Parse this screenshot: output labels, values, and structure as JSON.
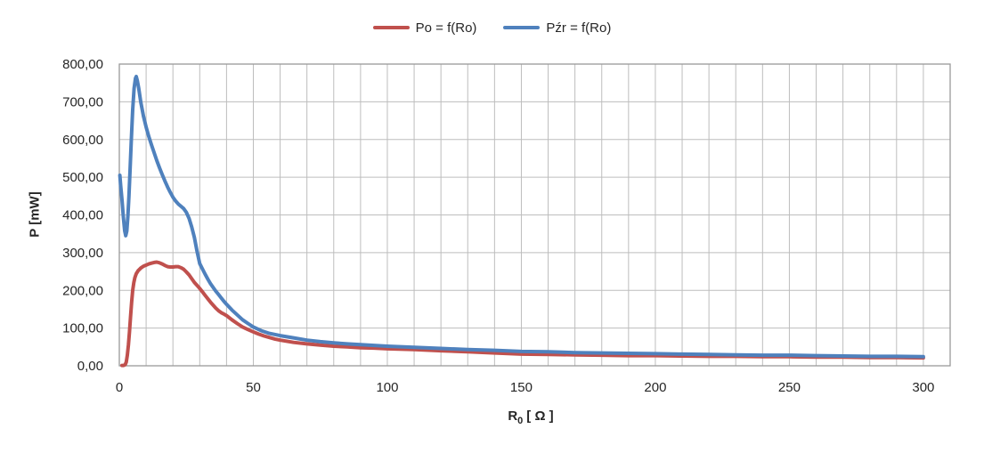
{
  "colors": {
    "background": "#FFFFFF",
    "gridline": "#BDBDBD",
    "plot_border": "#999999",
    "text": "#262626",
    "series_red": "#C0504D",
    "series_blue": "#4F81BD"
  },
  "chart_data": {
    "type": "line",
    "title": "",
    "ylabel": "P [mW]",
    "xlabel": {
      "base": "R",
      "sub": "0",
      "unit": "[ Ω ]"
    },
    "xlim": [
      0,
      310
    ],
    "ylim": [
      0,
      800
    ],
    "grid": {
      "x_minor_interval": 10,
      "y_interval": 100,
      "visible": true
    },
    "x_ticks": [
      {
        "value": 0,
        "label": "0"
      },
      {
        "value": 50,
        "label": "50"
      },
      {
        "value": 100,
        "label": "100"
      },
      {
        "value": 150,
        "label": "150"
      },
      {
        "value": 200,
        "label": "200"
      },
      {
        "value": 250,
        "label": "250"
      },
      {
        "value": 300,
        "label": "300"
      }
    ],
    "y_ticks": [
      {
        "value": 0,
        "label": "0,00"
      },
      {
        "value": 100,
        "label": "100,00"
      },
      {
        "value": 200,
        "label": "200,00"
      },
      {
        "value": 300,
        "label": "300,00"
      },
      {
        "value": 400,
        "label": "400,00"
      },
      {
        "value": 500,
        "label": "500,00"
      },
      {
        "value": 600,
        "label": "600,00"
      },
      {
        "value": 700,
        "label": "700,00"
      },
      {
        "value": 800,
        "label": "800,00"
      }
    ],
    "legend": {
      "position": "top-center",
      "entries": [
        {
          "id": "po",
          "label": "Po = f(Ro)",
          "color": "#C0504D"
        },
        {
          "id": "pzr",
          "label": "Pźr = f(Ro)",
          "color": "#4F81BD"
        }
      ]
    },
    "series": [
      {
        "id": "po",
        "name": "Po = f(Ro)",
        "color": "#C0504D",
        "points": [
          [
            1,
            1
          ],
          [
            1.6,
            1
          ],
          [
            2.2,
            3
          ],
          [
            2.6,
            10
          ],
          [
            3,
            28
          ],
          [
            3.4,
            55
          ],
          [
            3.8,
            90
          ],
          [
            4.2,
            130
          ],
          [
            4.6,
            168
          ],
          [
            5,
            200
          ],
          [
            5.4,
            221
          ],
          [
            5.8,
            234
          ],
          [
            6.3,
            244
          ],
          [
            7,
            252
          ],
          [
            8,
            259
          ],
          [
            9,
            264
          ],
          [
            10,
            267
          ],
          [
            11,
            270
          ],
          [
            12,
            272
          ],
          [
            13,
            274
          ],
          [
            14,
            275
          ],
          [
            15,
            273
          ],
          [
            16,
            270
          ],
          [
            17,
            266
          ],
          [
            18,
            263
          ],
          [
            19,
            262
          ],
          [
            20,
            262
          ],
          [
            21,
            263
          ],
          [
            22,
            263
          ],
          [
            23,
            260
          ],
          [
            24,
            256
          ],
          [
            25,
            249
          ],
          [
            26,
            241
          ],
          [
            27,
            231
          ],
          [
            28,
            221
          ],
          [
            29,
            213
          ],
          [
            30,
            205
          ],
          [
            31,
            196
          ],
          [
            32,
            187
          ],
          [
            33,
            178
          ],
          [
            34,
            169
          ],
          [
            35,
            161
          ],
          [
            36,
            153
          ],
          [
            37,
            146
          ],
          [
            38,
            141
          ],
          [
            39,
            137
          ],
          [
            40,
            133
          ],
          [
            42,
            122
          ],
          [
            44,
            112
          ],
          [
            46,
            103
          ],
          [
            48,
            96
          ],
          [
            50,
            90
          ],
          [
            52,
            84
          ],
          [
            54,
            79
          ],
          [
            56,
            75
          ],
          [
            58,
            71
          ],
          [
            60,
            68
          ],
          [
            65,
            62
          ],
          [
            70,
            58
          ],
          [
            75,
            55
          ],
          [
            80,
            52
          ],
          [
            85,
            50
          ],
          [
            90,
            48
          ],
          [
            95,
            47
          ],
          [
            100,
            45
          ],
          [
            110,
            43
          ],
          [
            120,
            40
          ],
          [
            130,
            37
          ],
          [
            140,
            34
          ],
          [
            150,
            31
          ],
          [
            160,
            30
          ],
          [
            170,
            29
          ],
          [
            180,
            28
          ],
          [
            190,
            27
          ],
          [
            200,
            27
          ],
          [
            210,
            26
          ],
          [
            220,
            25
          ],
          [
            230,
            25
          ],
          [
            240,
            24
          ],
          [
            250,
            24
          ],
          [
            260,
            23
          ],
          [
            270,
            23
          ],
          [
            280,
            22
          ],
          [
            290,
            22
          ],
          [
            300,
            21
          ]
        ]
      },
      {
        "id": "pzr",
        "name": "Pźr = f(Ro)",
        "color": "#4F81BD",
        "points": [
          [
            0.2,
            505
          ],
          [
            0.5,
            478
          ],
          [
            1,
            440
          ],
          [
            1.5,
            395
          ],
          [
            2,
            358
          ],
          [
            2.4,
            345
          ],
          [
            2.8,
            357
          ],
          [
            3.2,
            396
          ],
          [
            3.6,
            450
          ],
          [
            4,
            516
          ],
          [
            4.5,
            601
          ],
          [
            5,
            679
          ],
          [
            5.5,
            736
          ],
          [
            6,
            762
          ],
          [
            6.3,
            767
          ],
          [
            6.7,
            756
          ],
          [
            7.2,
            737
          ],
          [
            8,
            699
          ],
          [
            9,
            662
          ],
          [
            10,
            633
          ],
          [
            11,
            608
          ],
          [
            12,
            586
          ],
          [
            13,
            565
          ],
          [
            14,
            544
          ],
          [
            15,
            525
          ],
          [
            16,
            507
          ],
          [
            17,
            490
          ],
          [
            18,
            474
          ],
          [
            19,
            460
          ],
          [
            20,
            447
          ],
          [
            21,
            437
          ],
          [
            22,
            429
          ],
          [
            23,
            423
          ],
          [
            24,
            417
          ],
          [
            25,
            407
          ],
          [
            26,
            391
          ],
          [
            27,
            368
          ],
          [
            28,
            340
          ],
          [
            29,
            303
          ],
          [
            30,
            271
          ],
          [
            31,
            257
          ],
          [
            32,
            243
          ],
          [
            33,
            230
          ],
          [
            34,
            218
          ],
          [
            35,
            208
          ],
          [
            36,
            198
          ],
          [
            37,
            189
          ],
          [
            38,
            180
          ],
          [
            39,
            171
          ],
          [
            40,
            163
          ],
          [
            42,
            148
          ],
          [
            44,
            135
          ],
          [
            46,
            122
          ],
          [
            48,
            112
          ],
          [
            50,
            103
          ],
          [
            53,
            93
          ],
          [
            56,
            86
          ],
          [
            60,
            80
          ],
          [
            65,
            74
          ],
          [
            70,
            68
          ],
          [
            75,
            64
          ],
          [
            80,
            61
          ],
          [
            85,
            58
          ],
          [
            90,
            56
          ],
          [
            95,
            54
          ],
          [
            100,
            52
          ],
          [
            110,
            49
          ],
          [
            120,
            46
          ],
          [
            130,
            43
          ],
          [
            140,
            41
          ],
          [
            150,
            38
          ],
          [
            160,
            37
          ],
          [
            170,
            35
          ],
          [
            180,
            34
          ],
          [
            190,
            33
          ],
          [
            200,
            32
          ],
          [
            210,
            31
          ],
          [
            220,
            30
          ],
          [
            230,
            29
          ],
          [
            240,
            28
          ],
          [
            250,
            28
          ],
          [
            260,
            27
          ],
          [
            270,
            26
          ],
          [
            280,
            25
          ],
          [
            290,
            25
          ],
          [
            300,
            24
          ]
        ]
      }
    ]
  }
}
